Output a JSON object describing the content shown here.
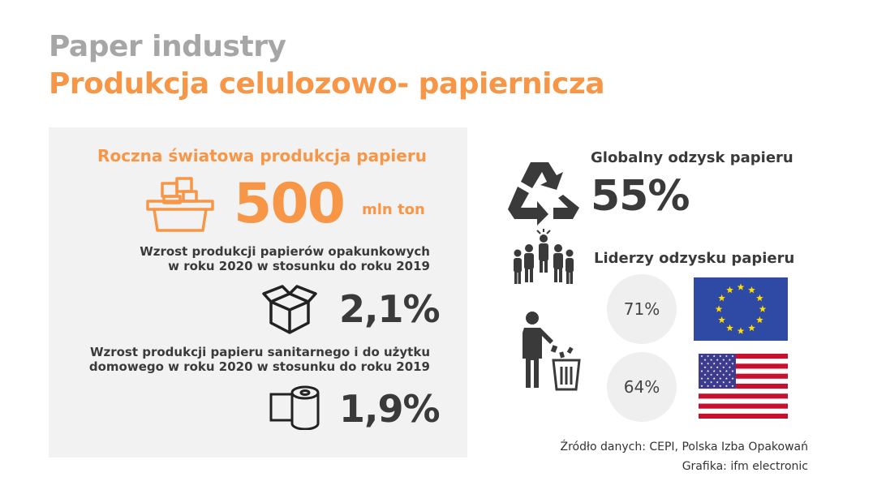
{
  "header": {
    "title_en": "Paper industry",
    "title_pl": "Produkcja celulozowo- papiernicza"
  },
  "annual_production": {
    "label": "Roczna światowa produkcja papieru",
    "value": "500",
    "unit": "mln ton"
  },
  "packaging_growth": {
    "line1": "Wzrost produkcji papierów opakunkowych",
    "line2": "w roku 2020 w stosunku do roku 2019",
    "value": "2,1%"
  },
  "sanitary_growth": {
    "line1": "Wzrost produkcji papieru sanitarnego i do użytku",
    "line2": "domowego w roku 2020 w stosunku do roku 2019",
    "value": "1,9%"
  },
  "global_recovery": {
    "label": "Globalny odzysk papieru",
    "value": "55%"
  },
  "leaders": {
    "label": "Liderzy odzysku papieru",
    "items": [
      {
        "value": "71%",
        "flag": "eu-flag"
      },
      {
        "value": "64%",
        "flag": "us-flag"
      }
    ]
  },
  "footer": {
    "source": "Źródło danych: CEPI, Polska Izba Opakowań",
    "credit": "Grafika: ifm electronic"
  },
  "colors": {
    "accent": "#f79646",
    "title_gray": "#a6a6a6",
    "text_dark": "#3a3a3a",
    "panel_bg": "#f2f2f2",
    "eu_blue": "#2e4aa4",
    "eu_star": "#ffdd00",
    "us_red": "#c8102e",
    "us_blue": "#3c3b8e"
  }
}
